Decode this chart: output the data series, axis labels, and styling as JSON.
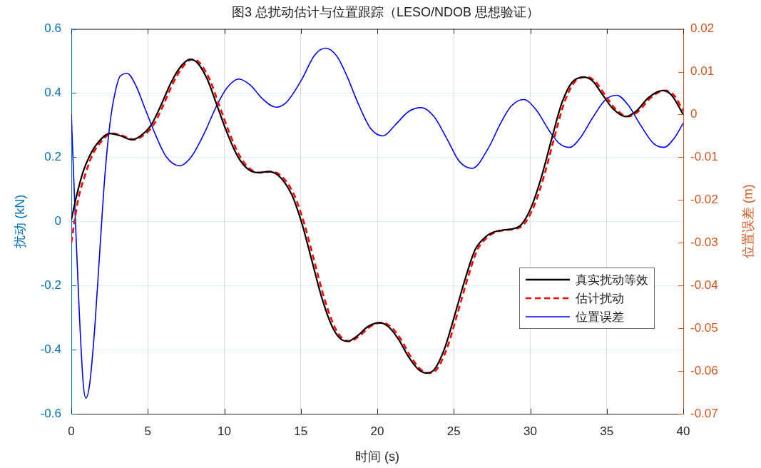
{
  "chart_data": {
    "type": "line",
    "title": "图3 总扰动估计与位置跟踪（LESO/NDOB 思想验证）",
    "xlabel": "时间 (s)",
    "ylabel": "扰动 (kN)",
    "y2label": "位置误差 (m)",
    "xlim": [
      0,
      40
    ],
    "xticks": [
      0,
      5,
      10,
      15,
      20,
      25,
      30,
      35,
      40
    ],
    "ylim": [
      -0.6,
      0.6
    ],
    "yticks": [
      -0.6,
      -0.4,
      -0.2,
      0,
      0.2,
      0.4,
      0.6
    ],
    "y2lim": [
      -0.07,
      0.02
    ],
    "y2ticks": [
      -0.07,
      -0.06,
      -0.05,
      -0.04,
      -0.03,
      -0.02,
      -0.01,
      0,
      0.01,
      0.02
    ],
    "grid": true,
    "legend": "right",
    "series": [
      {
        "name": "真实扰动等效",
        "color": "#000000",
        "x": [
          0,
          0.37,
          0.78,
          1.2,
          1.7,
          2.53,
          3.2,
          3.95,
          4.53,
          5.2,
          5.86,
          6.53,
          7.19,
          7.73,
          8.19,
          8.86,
          9.52,
          10.19,
          10.86,
          11.52,
          12.19,
          12.85,
          13.52,
          14.39,
          15.05,
          15.72,
          16.39,
          17.05,
          17.55,
          18.05,
          18.72,
          19.39,
          20.13,
          20.72,
          21.39,
          22.05,
          22.72,
          23.21,
          23.71,
          24.38,
          25.04,
          25.71,
          26.38,
          27.04,
          27.57,
          28.24,
          28.9,
          29.4,
          30.07,
          30.74,
          31.41,
          32.07,
          32.74,
          33.49,
          34.07,
          34.74,
          35.41,
          36.24,
          36.91,
          37.73,
          38.65,
          39.23,
          40
        ],
        "values": [
          0.005,
          0.085,
          0.156,
          0.204,
          0.243,
          0.274,
          0.267,
          0.255,
          0.267,
          0.299,
          0.362,
          0.434,
          0.485,
          0.505,
          0.497,
          0.446,
          0.362,
          0.275,
          0.204,
          0.164,
          0.152,
          0.155,
          0.144,
          0.085,
          -0.003,
          -0.122,
          -0.241,
          -0.328,
          -0.364,
          -0.374,
          -0.356,
          -0.328,
          -0.316,
          -0.328,
          -0.368,
          -0.423,
          -0.463,
          -0.473,
          -0.463,
          -0.399,
          -0.296,
          -0.185,
          -0.09,
          -0.05,
          -0.034,
          -0.027,
          -0.023,
          -0.011,
          0.045,
          0.14,
          0.259,
          0.37,
          0.434,
          0.45,
          0.438,
          0.394,
          0.351,
          0.327,
          0.343,
          0.386,
          0.408,
          0.394,
          0.333
        ]
      },
      {
        "name": "估计扰动",
        "color": "#ff0000",
        "line_style": "dashed",
        "x": [
          0,
          0.2,
          0.45,
          0.87,
          1.35,
          1.85,
          2.68,
          3.35,
          4.1,
          4.68,
          5.35,
          6.01,
          6.68,
          7.34,
          7.88,
          8.34,
          9.01,
          9.67,
          10.34,
          11.01,
          11.67,
          12.34,
          13,
          13.67,
          14.54,
          15.2,
          15.87,
          16.54,
          17.2,
          17.7,
          18.2,
          18.87,
          19.54,
          20.28,
          20.87,
          21.54,
          22.2,
          22.87,
          23.36,
          23.86,
          24.53,
          25.19,
          25.86,
          26.53,
          27.19,
          27.72,
          28.39,
          29.05,
          29.55,
          30.22,
          30.89,
          31.56,
          32.22,
          32.89,
          33.64,
          34.22,
          34.89,
          35.56,
          36.39,
          37.06,
          37.88,
          38.8,
          39.38,
          40
        ],
        "values": [
          -0.066,
          -0.003,
          0.069,
          0.14,
          0.204,
          0.243,
          0.274,
          0.267,
          0.255,
          0.267,
          0.299,
          0.362,
          0.434,
          0.485,
          0.505,
          0.497,
          0.446,
          0.362,
          0.275,
          0.204,
          0.164,
          0.152,
          0.155,
          0.144,
          0.085,
          -0.003,
          -0.122,
          -0.241,
          -0.328,
          -0.364,
          -0.374,
          -0.356,
          -0.328,
          -0.316,
          -0.328,
          -0.368,
          -0.423,
          -0.463,
          -0.473,
          -0.463,
          -0.399,
          -0.296,
          -0.185,
          -0.09,
          -0.05,
          -0.034,
          -0.027,
          -0.023,
          -0.011,
          0.045,
          0.14,
          0.259,
          0.37,
          0.434,
          0.45,
          0.438,
          0.394,
          0.351,
          0.327,
          0.343,
          0.386,
          0.408,
          0.394,
          0.345
        ]
      },
      {
        "name": "位置误差",
        "color": "#0000ff",
        "axis": "y2",
        "x": [
          0,
          0.28,
          0.53,
          0.78,
          0.95,
          1.2,
          1.53,
          1.86,
          2.2,
          2.53,
          2.86,
          3.2,
          3.66,
          4.2,
          4.86,
          5.53,
          6.19,
          7.08,
          7.86,
          8.69,
          9.52,
          10.19,
          10.94,
          11.69,
          12.52,
          13.39,
          14.05,
          15.05,
          15.89,
          16.63,
          17.38,
          18.05,
          18.72,
          19.55,
          20.38,
          21.21,
          22.05,
          22.88,
          23.71,
          24.54,
          25.37,
          26.21,
          27.24,
          28.07,
          28.74,
          29.57,
          30.4,
          31.24,
          31.9,
          32.57,
          33.24,
          34.07,
          34.9,
          35.65,
          36.4,
          37.23,
          38.06,
          38.73,
          39.4,
          40
        ],
        "values": [
          0,
          -0.026,
          -0.047,
          -0.063,
          -0.0663,
          -0.063,
          -0.05,
          -0.032,
          -0.014,
          -0.002,
          0.0051,
          0.009,
          0.0096,
          0.0069,
          0.001,
          -0.005,
          -0.0098,
          -0.012,
          -0.0098,
          -0.0044,
          0.0022,
          0.0063,
          0.0083,
          0.0069,
          0.0036,
          0.0017,
          0.0028,
          0.0081,
          0.0138,
          0.0155,
          0.0135,
          0.0087,
          0.0028,
          -0.0032,
          -0.005,
          -0.0023,
          0.0007,
          0.0016,
          -0.0005,
          -0.0056,
          -0.011,
          -0.0126,
          -0.008,
          -0.002,
          0.0019,
          0.0035,
          0.001,
          -0.0038,
          -0.0068,
          -0.0077,
          -0.0056,
          -0.0008,
          0.0034,
          0.0045,
          0.0022,
          -0.0026,
          -0.0068,
          -0.0077,
          -0.0056,
          -0.002
        ]
      }
    ]
  }
}
